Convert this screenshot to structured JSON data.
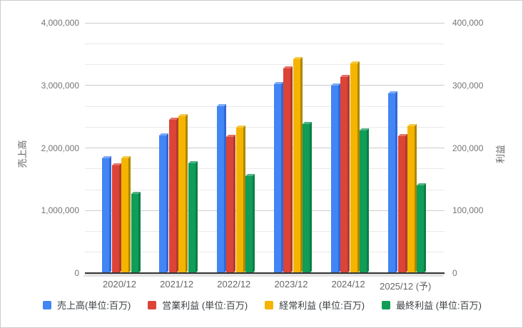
{
  "chart_data": {
    "type": "bar",
    "title": "",
    "categories": [
      "2020/12",
      "2021/12",
      "2022/12",
      "2023/12",
      "2024/12",
      "2025/12 (予)"
    ],
    "series": [
      {
        "name": "売上高(単位:百万)",
        "axis": "left",
        "values": [
          1840000,
          2200000,
          2670000,
          3020000,
          3000000,
          2870000
        ]
      },
      {
        "name": "営業利益 (単位:百万)",
        "axis": "right",
        "values": [
          172000,
          245000,
          218000,
          327000,
          313000,
          219000
        ]
      },
      {
        "name": "経常利益 (単位:百万)",
        "axis": "right",
        "values": [
          184000,
          251000,
          233000,
          342000,
          335000,
          235000
        ]
      },
      {
        "name": "最終利益 (単位:百万)",
        "axis": "right",
        "values": [
          126000,
          175000,
          155000,
          238000,
          228000,
          140000
        ]
      }
    ],
    "left_axis": {
      "label": "売上高",
      "min": 0,
      "max": 4000000,
      "tick_interval": 1000000,
      "tick_labels": [
        "0",
        "1,000,000",
        "2,000,000",
        "3,000,000",
        "4,000,000"
      ]
    },
    "right_axis": {
      "label": "利益",
      "min": 0,
      "max": 400000,
      "tick_interval": 100000,
      "tick_labels": [
        "0",
        "100,000",
        "200,000",
        "300,000",
        "400,000"
      ]
    },
    "grid": {
      "major": true,
      "minor_per_major": 2
    },
    "legend_position": "bottom",
    "style": "3d-column",
    "colors": [
      {
        "face": "#4285f4",
        "top": "#7baaf7",
        "side": "#3367d6"
      },
      {
        "face": "#db4437",
        "top": "#e57368",
        "side": "#b03b2e"
      },
      {
        "face": "#f4b400",
        "top": "#f7ca46",
        "side": "#ae8600"
      },
      {
        "face": "#0f9d58",
        "top": "#4fb383",
        "side": "#0c7d46"
      }
    ],
    "background": "#ffffff",
    "border_color": "#cccccc"
  }
}
